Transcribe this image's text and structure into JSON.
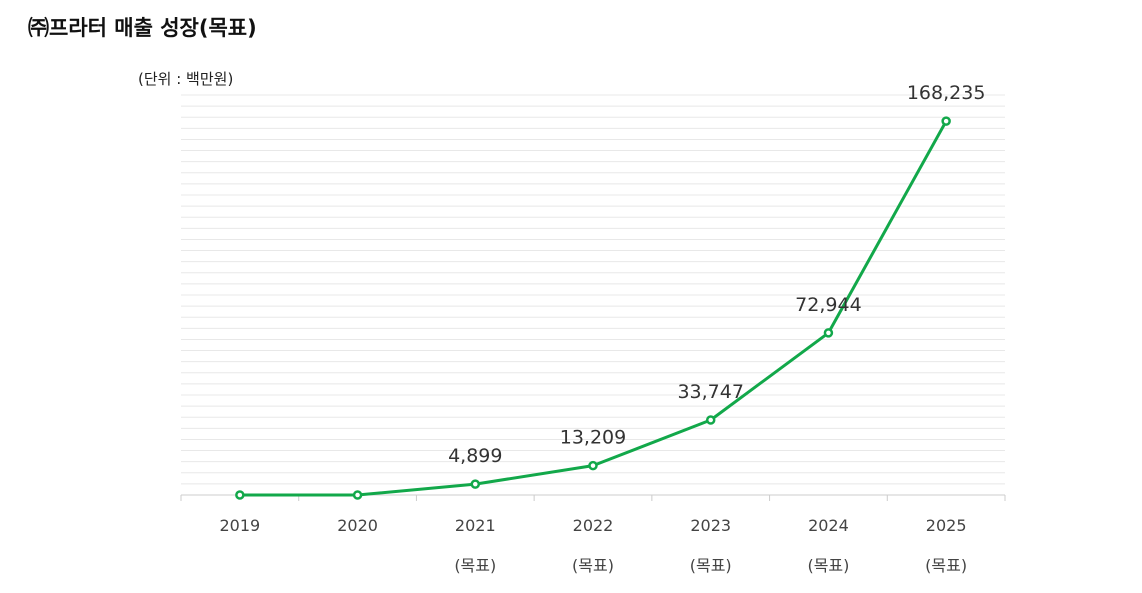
{
  "title": "㈜프라터 매출 성장(목표)",
  "unit_label": "(단위 : 백만원)",
  "colors": {
    "line": "#12a84a",
    "grid": "#e8e8e8",
    "axis": "#cccccc"
  },
  "chart_data": {
    "type": "line",
    "title": "㈜프라터 매출 성장(목표)",
    "ylabel": "(단위 : 백만원)",
    "xlabel": "",
    "categories": [
      "2019",
      "2020",
      "2021",
      "2022",
      "2023",
      "2024",
      "2025"
    ],
    "sublabels": [
      "",
      "",
      "(목표)",
      "(목표)",
      "(목표)",
      "(목표)",
      "(목표)"
    ],
    "values": [
      0,
      0,
      4899,
      13209,
      33747,
      72944,
      168235
    ],
    "data_labels": [
      "",
      "",
      "4,899",
      "13,209",
      "33,747",
      "72,944",
      "168,235"
    ],
    "ylim": [
      0,
      180000
    ],
    "grid": true,
    "legend": "none"
  }
}
